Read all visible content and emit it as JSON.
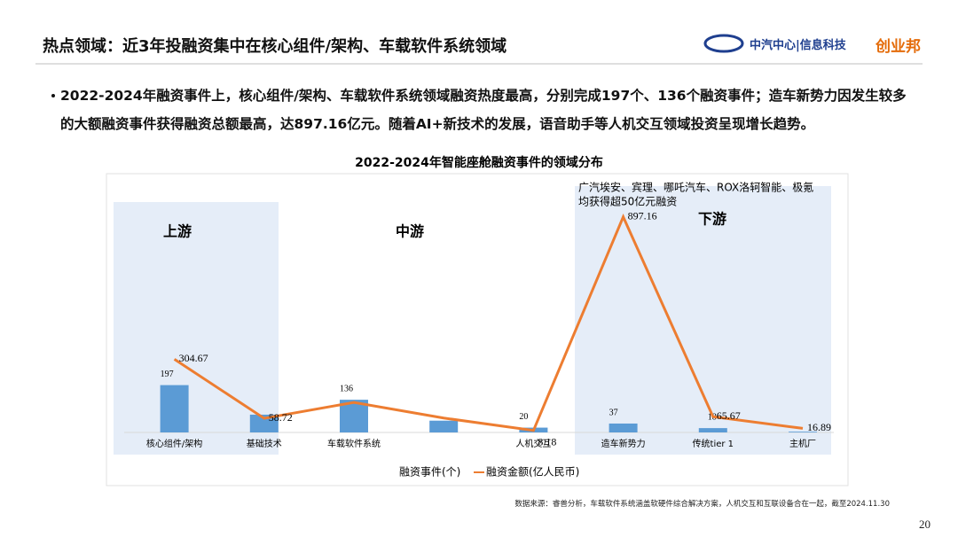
{
  "header": {
    "title": "热点领域：近3年投融资集中在核心组件/架构、车载软件系统领域",
    "org": "中汽中心|信息科技",
    "brand": "创业邦"
  },
  "bullet": "2022-2024年融资事件上，核心组件/架构、车载软件系统领域融资热度最高，分别完成197个、136个融资事件；造车新势力因发生较多的大额融资事件获得融资总额最高，达897.16亿元。随着AI+新技术的发展，语音助手等人机交互领域投资呈现增长趋势。",
  "chart_data": {
    "type": "bar-line",
    "title": "2022-2024年智能座舱融资事件的领域分布",
    "categories": [
      "核心组件/架构",
      "基础技术",
      "车载软件系统",
      null,
      "人机交互",
      "造车新势力",
      "传统tier 1",
      "主机厂"
    ],
    "series": [
      {
        "name": "融资事件(个)",
        "type": "bar",
        "color": "#5b9bd5",
        "values": [
          197,
          74,
          136,
          49,
          20,
          37,
          18,
          3
        ],
        "value_labels": [
          "197",
          null,
          "136",
          null,
          "20",
          "37",
          "18",
          null
        ]
      },
      {
        "name": "融资金额(亿人民币)",
        "type": "line",
        "axis": "y2",
        "color": "#ed7d31",
        "values": [
          304.67,
          58.72,
          124.96,
          60,
          8.18,
          897.16,
          65.67,
          16.89
        ],
        "value_labels": [
          "304.67",
          "58.72",
          null,
          null,
          "8.18",
          "897.16",
          "65.67",
          "16.89"
        ]
      }
    ],
    "ylim": [
      0,
      900
    ],
    "y2lim": [
      0,
      900
    ],
    "regions": [
      "上游",
      "中游",
      "下游"
    ],
    "annotation": [
      "广汽埃安、宾理、哪吒汽车、ROX洛轲智能、极氪",
      "均获得超50亿元融资"
    ]
  },
  "source": "数据来源：睿兽分析，车载软件系统涵盖软硬件综合解决方案，人机交互和互联设备合在一起，截至2024.11.30",
  "page_number": "20"
}
